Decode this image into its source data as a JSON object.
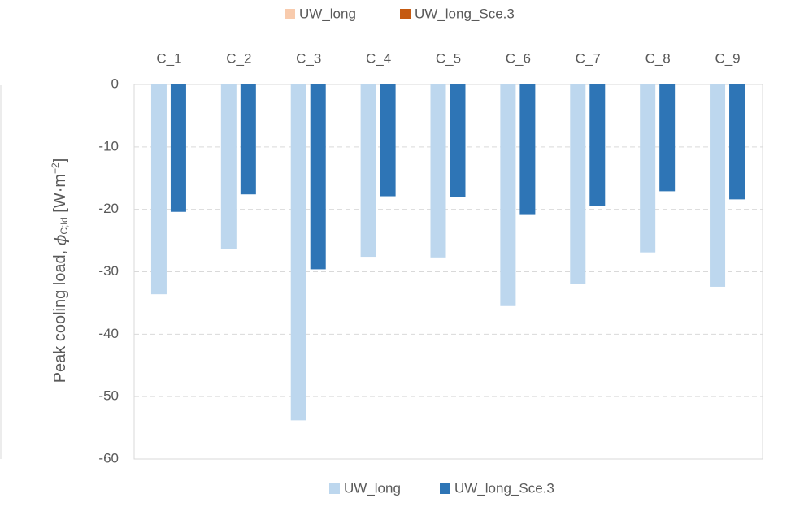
{
  "other_legend": [
    {
      "name": "UW_long",
      "color": "#f8cbad"
    },
    {
      "name": "UW_long_Sce.3",
      "color": "#c55a11"
    }
  ],
  "chart_data": {
    "type": "bar",
    "y_label": [
      "Peak cooling load, ",
      "ϕ",
      "C;ld",
      " [W·m",
      "−2",
      "]"
    ],
    "categories": [
      "C_1",
      "C_2",
      "C_3",
      "C_4",
      "C_5",
      "C_6",
      "C_7",
      "C_8",
      "C_9"
    ],
    "series": [
      {
        "name": "UW_long",
        "color": "#bdd7ee",
        "values": [
          -33.6,
          -26.4,
          -53.8,
          -27.6,
          -27.7,
          -35.5,
          -32.0,
          -26.9,
          -32.4
        ]
      },
      {
        "name": "UW_long_Sce.3",
        "color": "#2e75b6",
        "values": [
          -20.4,
          -17.6,
          -29.6,
          -17.9,
          -18.0,
          -20.9,
          -19.4,
          -17.1,
          -18.4
        ]
      }
    ],
    "ylim": [
      -60,
      0
    ],
    "yticks": [
      0,
      -10,
      -20,
      -30,
      -40,
      -50,
      -60
    ],
    "grid": true,
    "legend": "bottom"
  }
}
